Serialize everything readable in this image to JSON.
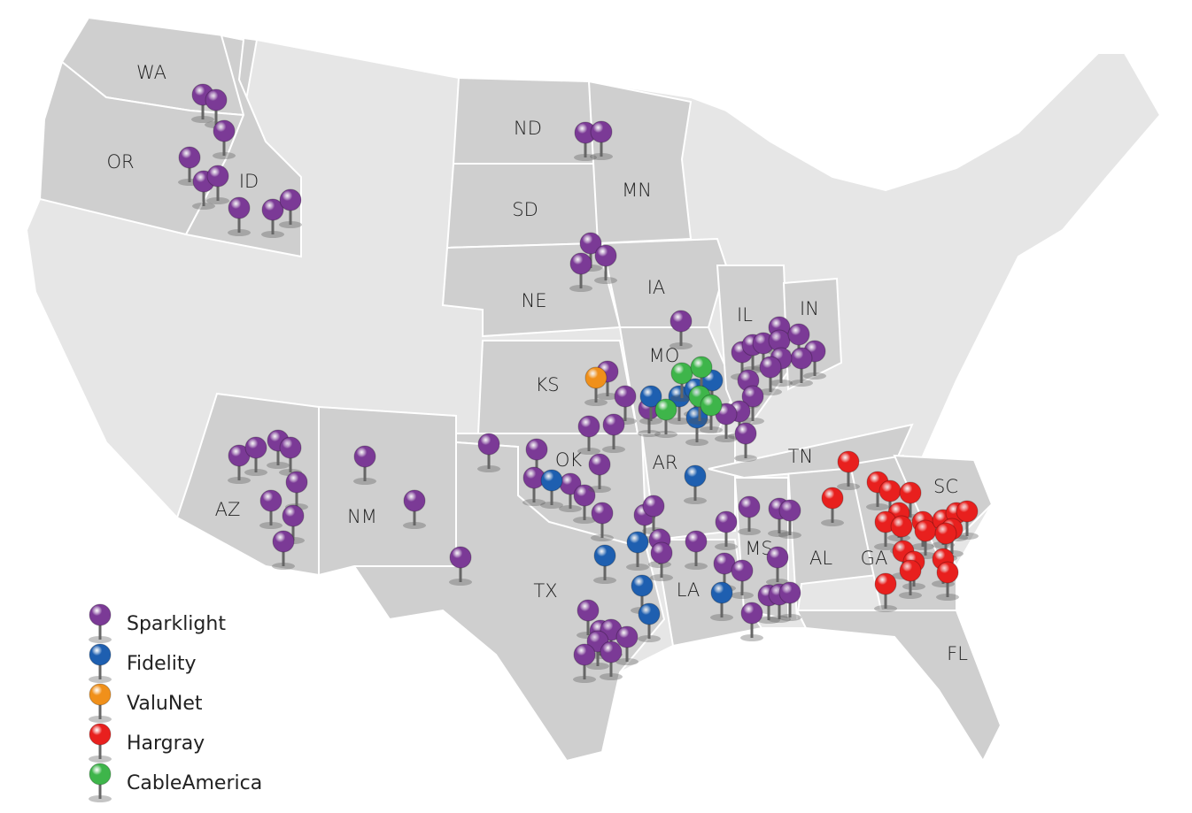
{
  "state_labels": [
    "WA",
    "OR",
    "ID",
    "ND",
    "SD",
    "MN",
    "NE",
    "IA",
    "KS",
    "MO",
    "IL",
    "IN",
    "OK",
    "AR",
    "TN",
    "SC",
    "TX",
    "LA",
    "MS",
    "AL",
    "GA",
    "FL",
    "AZ",
    "NM"
  ],
  "legend": [
    {
      "name": "Sparklight",
      "color": "#7b3a96"
    },
    {
      "name": "Fidelity",
      "color": "#1e5fb0"
    },
    {
      "name": "ValuNet",
      "color": "#f0901a"
    },
    {
      "name": "Hargray",
      "color": "#e8201e"
    },
    {
      "name": "CableAmerica",
      "color": "#3eb54a"
    }
  ]
}
